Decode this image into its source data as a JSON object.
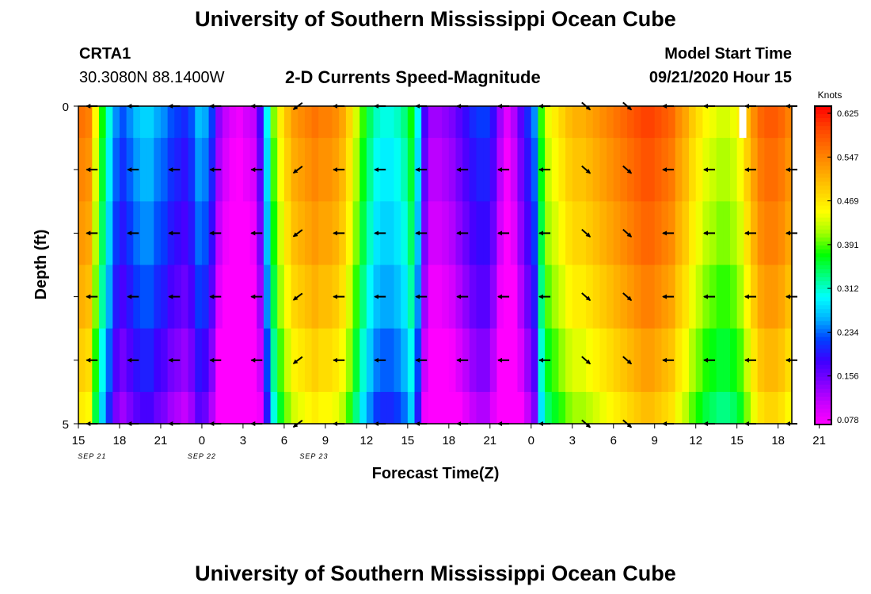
{
  "header": {
    "title": "University of Southern Mississippi Ocean Cube",
    "station": "CRTA1",
    "coords": "30.3080N 88.1400W",
    "subtitle": "2-D Currents Speed-Magnitude",
    "model_label": "Model Start Time",
    "model_time": "09/21/2020 Hour 15"
  },
  "footer": {
    "title": "University of Southern Mississippi Ocean Cube"
  },
  "chart_data": {
    "type": "heatmap",
    "title": "2-D Currents Speed-Magnitude",
    "xlabel": "Forecast Time(Z)",
    "ylabel": "Depth (ft)",
    "ylim": [
      0,
      5
    ],
    "y_ticks": [
      "0",
      "5"
    ],
    "x_ticks": [
      "15",
      "18",
      "21",
      "0",
      "3",
      "6",
      "9",
      "12",
      "15",
      "18",
      "21",
      "0",
      "3",
      "6",
      "9",
      "12",
      "15",
      "18",
      "21"
    ],
    "x_dates": [
      "SEP 21",
      "SEP 22",
      "SEP 23"
    ],
    "x_date_hours": [
      3,
      27,
      51.5
    ],
    "hours": [
      0,
      1.5,
      3,
      4.5,
      6,
      7.5,
      9,
      10.5,
      12,
      13.5,
      15,
      16.5,
      18,
      19.5,
      21,
      22.5,
      24,
      25.5,
      27,
      28.5,
      30,
      31.5,
      33,
      34.5,
      36,
      37.5,
      39,
      40.5,
      42,
      43.5,
      45,
      46.5,
      48,
      49.5,
      51,
      52.5,
      54,
      55.5,
      57,
      58.5,
      60,
      61.5,
      63,
      64.5,
      66,
      67.5,
      69,
      70.5,
      72,
      73.5,
      75,
      76.5,
      78,
      79.5,
      81,
      82.5,
      84,
      85.5,
      87,
      88.5,
      90,
      91.5,
      93,
      94.5,
      96,
      97.5,
      99,
      100.5,
      102,
      103.5,
      105,
      106.5,
      108,
      109.5,
      111,
      112.5,
      114,
      115.5,
      117,
      118.5,
      120,
      121.5,
      123,
      124.5,
      126,
      127.5,
      129,
      130.5,
      132,
      133.5,
      135,
      136.5,
      138,
      139.5,
      141,
      142.5,
      144,
      145.5,
      147,
      148.5,
      150,
      151.5,
      153,
      154.5
    ],
    "depth_layers": [
      0,
      1,
      2,
      3,
      4,
      5
    ],
    "speed_profile": [
      0.56,
      0.55,
      0.45,
      0.37,
      0.3,
      0.24,
      0.22,
      0.24,
      0.26,
      0.27,
      0.27,
      0.25,
      0.24,
      0.22,
      0.21,
      0.2,
      0.22,
      0.26,
      0.25,
      0.21,
      0.13,
      0.1,
      0.08,
      0.07,
      0.09,
      0.1,
      0.17,
      0.29,
      0.4,
      0.46,
      0.5,
      0.53,
      0.54,
      0.55,
      0.56,
      0.55,
      0.55,
      0.54,
      0.52,
      0.48,
      0.43,
      0.38,
      0.34,
      0.31,
      0.3,
      0.3,
      0.31,
      0.33,
      0.37,
      0.29,
      0.17,
      0.12,
      0.12,
      0.13,
      0.14,
      0.16,
      0.18,
      0.2,
      0.21,
      0.21,
      0.18,
      0.12,
      0.08,
      0.11,
      0.16,
      0.2,
      0.24,
      0.38,
      0.44,
      0.46,
      0.48,
      0.5,
      0.51,
      0.51,
      0.52,
      0.53,
      0.54,
      0.55,
      0.56,
      0.57,
      0.58,
      0.59,
      0.6,
      0.6,
      0.59,
      0.58,
      0.57,
      0.54,
      0.52,
      0.49,
      0.47,
      0.45,
      0.44,
      0.43,
      0.43,
      0.44,
      0.46,
      0.5,
      0.54,
      0.57,
      0.58,
      0.58,
      0.57,
      0.55
    ],
    "depth_offsets": [
      0.0,
      -0.015,
      -0.03,
      -0.05,
      -0.075,
      -0.1
    ],
    "missing_cells": [
      {
        "hour": 144.5,
        "depth": 0
      }
    ],
    "arrows": {
      "hours": [
        3,
        12,
        21,
        30,
        39,
        48,
        57,
        66,
        75,
        84,
        93,
        102,
        111,
        120,
        129,
        138,
        147,
        156
      ],
      "depths": [
        0,
        1,
        2,
        3,
        4,
        5
      ],
      "direction": [
        "W",
        "W",
        "W",
        "W",
        "W",
        "SW",
        "W",
        "W",
        "W",
        "W",
        "W",
        "W",
        "SE",
        "SE",
        "W",
        "W",
        "W",
        "W"
      ],
      "note": "black arrows show current direction on a 3-hour by 1-ft grid"
    },
    "colorbar": {
      "label": "Knots",
      "ticks": [
        "0.625",
        "0.547",
        "0.469",
        "0.391",
        "0.312",
        "0.234",
        "0.156",
        "0.078"
      ],
      "range": [
        0.06,
        0.64
      ],
      "colors": [
        "#ff00ff",
        "#c800ff",
        "#8000ff",
        "#3c00ff",
        "#0040ff",
        "#00b4ff",
        "#00ffff",
        "#00ff80",
        "#00ff00",
        "#a0ff00",
        "#ffff00",
        "#ffd000",
        "#ffa000",
        "#ff7000",
        "#ff4000",
        "#ff0000"
      ]
    }
  }
}
